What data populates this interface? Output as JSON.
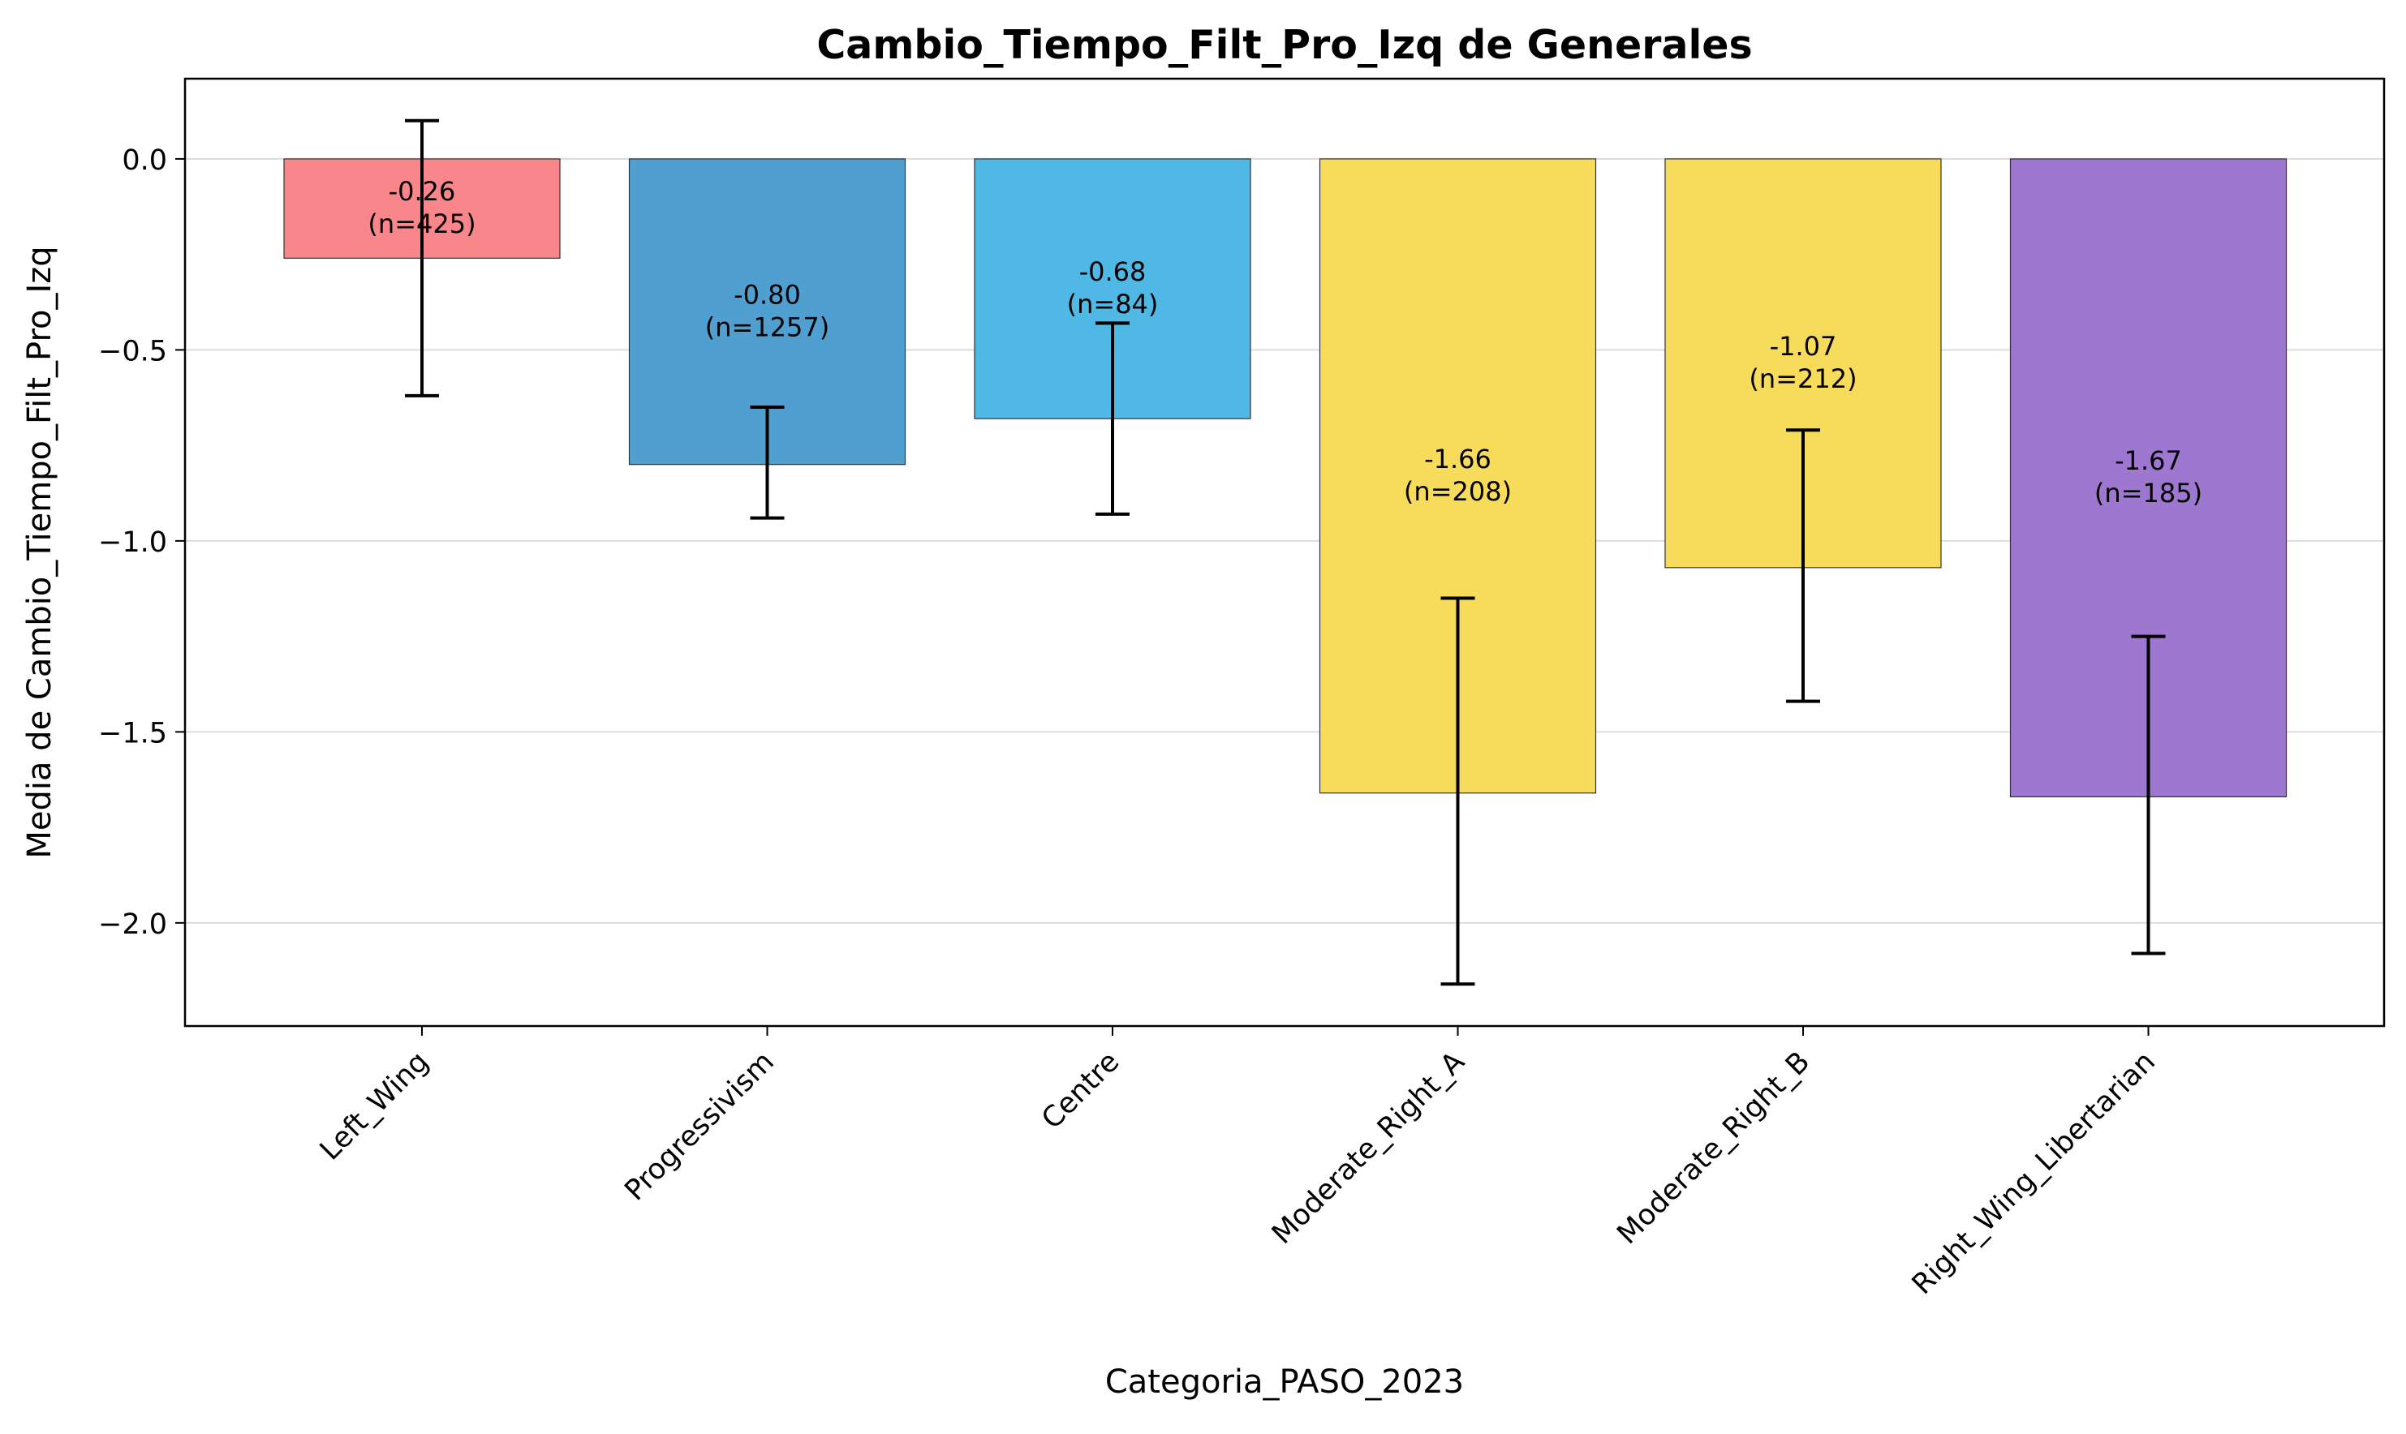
{
  "chart_data": {
    "type": "bar",
    "title": "Cambio_Tiempo_Filt_Pro_Izq de Generales",
    "xlabel": "Categoria_PASO_2023",
    "ylabel": "Media de Cambio_Tiempo_Filt_Pro_Izq",
    "ylim": [
      -2.27,
      0.21
    ],
    "yticks": [
      0.0,
      -0.5,
      -1.0,
      -1.5,
      -2.0
    ],
    "ytick_labels": [
      "0.0",
      "−0.5",
      "−1.0",
      "−1.5",
      "−2.0"
    ],
    "grid": "horizontal",
    "categories": [
      "Left_Wing",
      "Progressivism",
      "Centre",
      "Moderate_Right_A",
      "Moderate_Right_B",
      "Right_Wing_Libertarian"
    ],
    "values": [
      -0.26,
      -0.8,
      -0.68,
      -1.66,
      -1.07,
      -1.67
    ],
    "error_low": [
      -0.62,
      -0.94,
      -0.93,
      -2.16,
      -1.42,
      -2.08
    ],
    "error_high": [
      0.1,
      -0.65,
      -0.43,
      -1.15,
      -0.71,
      -1.25
    ],
    "value_labels": [
      "-0.26",
      "-0.80",
      "-0.68",
      "-1.66",
      "-1.07",
      "-1.67"
    ],
    "count_labels": [
      "(n=425)",
      "(n=1257)",
      "(n=84)",
      "(n=208)",
      "(n=212)",
      "(n=185)"
    ],
    "colors": [
      "#f9868b",
      "#4f9fd1",
      "#4fb8e4",
      "#f7dc5c",
      "#f7dc5c",
      "#9e77d0"
    ]
  }
}
